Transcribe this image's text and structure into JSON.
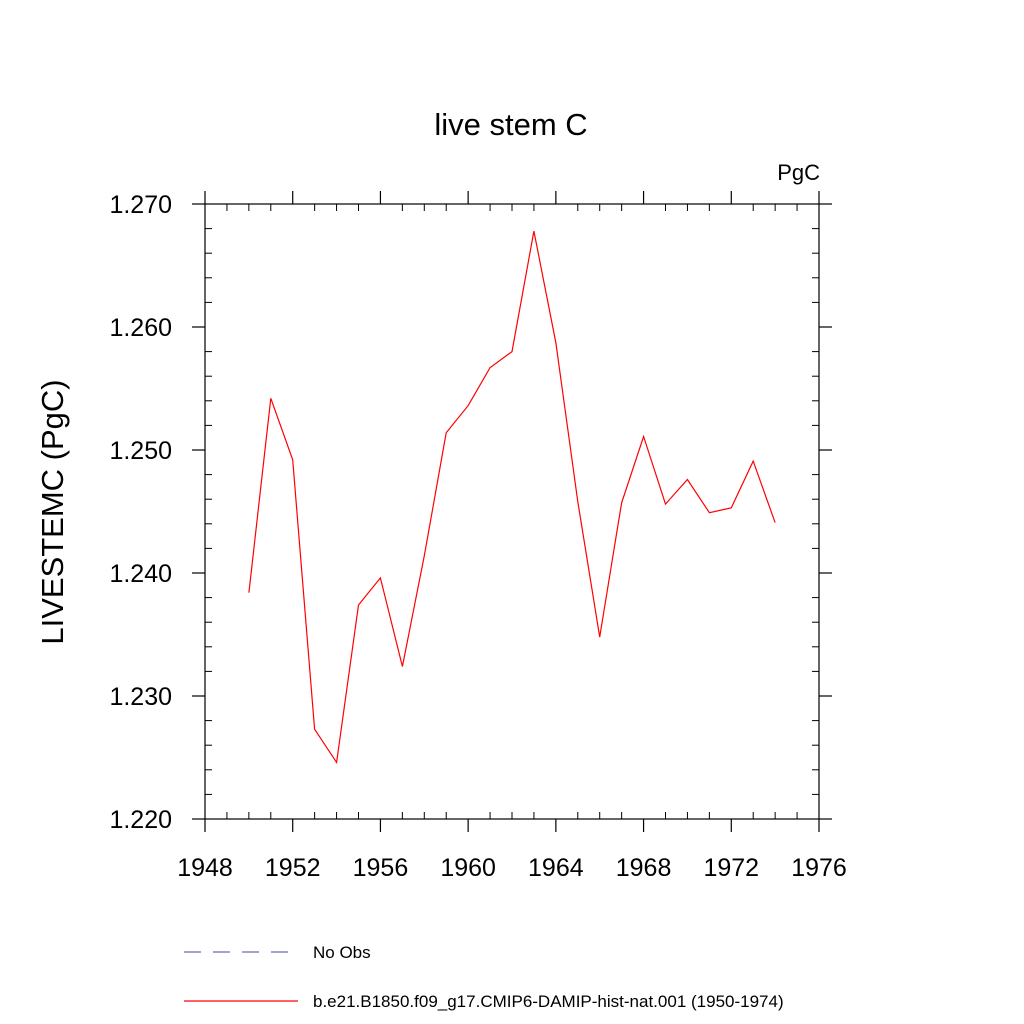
{
  "chart_data": {
    "type": "line",
    "title": "live stem C",
    "units_label": "PgC",
    "ylabel": "LIVESTEMC  (PgC)",
    "xlabel": "",
    "xlim": [
      1948,
      1976
    ],
    "ylim": [
      1.22,
      1.27
    ],
    "x_ticks": [
      1948,
      1952,
      1956,
      1960,
      1964,
      1968,
      1972,
      1976
    ],
    "x_tick_labels": [
      "1948",
      "1952",
      "1956",
      "1960",
      "1964",
      "1968",
      "1972",
      "1976"
    ],
    "y_ticks": [
      1.22,
      1.23,
      1.24,
      1.25,
      1.26,
      1.27
    ],
    "y_tick_labels": [
      "1.220",
      "1.230",
      "1.240",
      "1.250",
      "1.260",
      "1.270"
    ],
    "grid": false,
    "legend_position": "bottom",
    "series": [
      {
        "name": "b.e21.B1850.f09_g17.CMIP6-DAMIP-hist-nat.001 (1950-1974)",
        "color": "#ff0000",
        "style": "solid",
        "x": [
          1950,
          1951,
          1952,
          1953,
          1954,
          1955,
          1956,
          1957,
          1958,
          1959,
          1960,
          1961,
          1962,
          1963,
          1964,
          1965,
          1966,
          1967,
          1968,
          1969,
          1970,
          1971,
          1972,
          1973,
          1974
        ],
        "values": [
          1.2384,
          1.2542,
          1.2492,
          1.2273,
          1.2246,
          1.2374,
          1.2396,
          1.2324,
          1.2414,
          1.2514,
          1.2536,
          1.2567,
          1.258,
          1.2678,
          1.2587,
          1.2458,
          1.2348,
          1.2457,
          1.2511,
          1.2456,
          1.2476,
          1.2449,
          1.2453,
          1.2491,
          1.2441
        ]
      }
    ],
    "legend": [
      {
        "label": "No Obs",
        "color": "#6b6bb5",
        "style": "dashed"
      },
      {
        "label": "b.e21.B1850.f09_g17.CMIP6-DAMIP-hist-nat.001 (1950-1974)",
        "color": "#ff0000",
        "style": "solid"
      }
    ]
  }
}
